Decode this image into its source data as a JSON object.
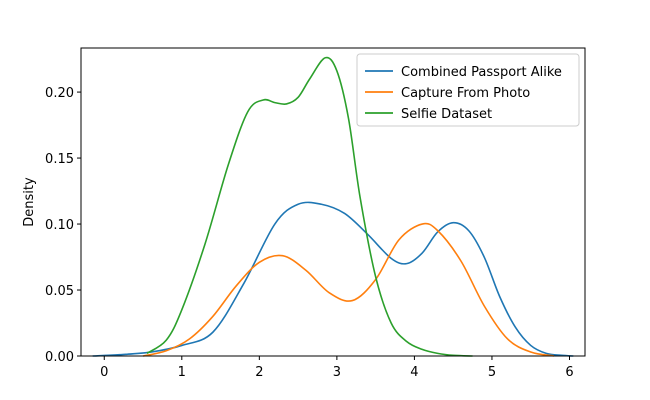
{
  "chart_data": {
    "type": "line",
    "title": "",
    "xlabel": "",
    "ylabel": "Density",
    "xlim": [
      -0.3,
      6.2
    ],
    "ylim": [
      0,
      0.2334
    ],
    "xticks": [
      "0",
      "1",
      "2",
      "3",
      "4",
      "5",
      "6"
    ],
    "yticks": [
      "0.00",
      "0.05",
      "0.10",
      "0.15",
      "0.20"
    ],
    "grid": false,
    "legend_position": "top-right",
    "series": [
      {
        "name": "Combined Passport Alike",
        "color": "#1f77b4",
        "x": [
          -0.15,
          0.2,
          0.6,
          1.0,
          1.4,
          1.8,
          2.2,
          2.5,
          2.8,
          3.1,
          3.4,
          3.7,
          3.9,
          4.1,
          4.3,
          4.5,
          4.7,
          4.9,
          5.1,
          5.3,
          5.5,
          5.7,
          5.9,
          6.05
        ],
        "values": [
          0.0,
          0.001,
          0.003,
          0.008,
          0.018,
          0.055,
          0.1,
          0.115,
          0.115,
          0.108,
          0.092,
          0.074,
          0.07,
          0.078,
          0.094,
          0.101,
          0.095,
          0.075,
          0.045,
          0.022,
          0.008,
          0.002,
          0.0005,
          0.0
        ]
      },
      {
        "name": "Capture From Photo",
        "color": "#ff7f0e",
        "x": [
          0.5,
          0.8,
          1.1,
          1.4,
          1.7,
          2.0,
          2.3,
          2.6,
          2.9,
          3.2,
          3.5,
          3.8,
          4.1,
          4.3,
          4.6,
          4.9,
          5.2,
          5.5,
          5.8
        ],
        "values": [
          0.0,
          0.004,
          0.013,
          0.03,
          0.053,
          0.071,
          0.076,
          0.065,
          0.048,
          0.042,
          0.058,
          0.088,
          0.1,
          0.095,
          0.072,
          0.038,
          0.013,
          0.003,
          0.0
        ]
      },
      {
        "name": "Selfie Dataset",
        "color": "#2ca02c",
        "x": [
          0.55,
          0.8,
          1.0,
          1.3,
          1.6,
          1.85,
          2.05,
          2.2,
          2.35,
          2.5,
          2.65,
          2.85,
          3.0,
          3.15,
          3.3,
          3.5,
          3.7,
          3.9,
          4.1,
          4.3,
          4.5,
          4.75
        ],
        "values": [
          0.002,
          0.012,
          0.035,
          0.085,
          0.145,
          0.185,
          0.194,
          0.192,
          0.191,
          0.196,
          0.21,
          0.226,
          0.216,
          0.18,
          0.12,
          0.06,
          0.025,
          0.011,
          0.005,
          0.002,
          0.0005,
          0.0
        ]
      }
    ]
  }
}
